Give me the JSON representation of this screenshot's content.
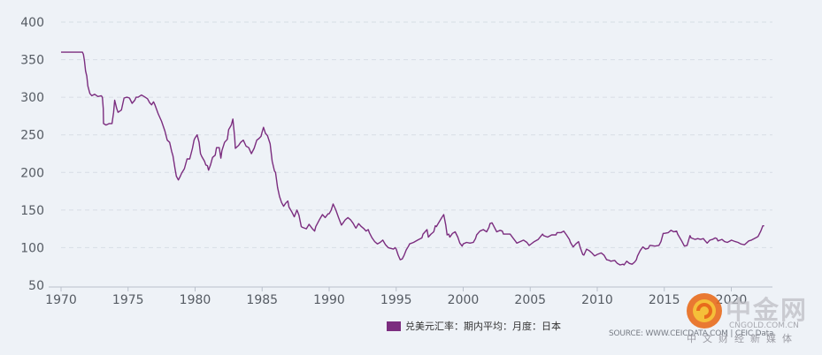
{
  "chart_data": {
    "type": "line",
    "x_range": [
      1970,
      2022.5
    ],
    "ylim": [
      50,
      400
    ],
    "yticks": [
      50,
      100,
      150,
      200,
      250,
      300,
      350,
      400
    ],
    "xticks": [
      1970,
      1975,
      1980,
      1985,
      1990,
      1995,
      2000,
      2005,
      2010,
      2015,
      2020
    ],
    "grid": "horizontal-dashed",
    "legend_position": "bottom-center",
    "series": [
      {
        "name": "兑美元汇率：期内平均：月度：日本",
        "color": "#7b2d7f",
        "points": [
          [
            1970.0,
            360
          ],
          [
            1971.6,
            360
          ],
          [
            1971.67,
            357
          ],
          [
            1971.75,
            348
          ],
          [
            1971.83,
            335
          ],
          [
            1971.92,
            328
          ],
          [
            1972.0,
            315
          ],
          [
            1972.15,
            305
          ],
          [
            1972.3,
            302
          ],
          [
            1972.5,
            304
          ],
          [
            1972.75,
            301
          ],
          [
            1973.0,
            302
          ],
          [
            1973.08,
            300
          ],
          [
            1973.15,
            285
          ],
          [
            1973.17,
            265
          ],
          [
            1973.35,
            263
          ],
          [
            1973.6,
            265
          ],
          [
            1973.8,
            265
          ],
          [
            1973.92,
            280
          ],
          [
            1974.0,
            296
          ],
          [
            1974.15,
            285
          ],
          [
            1974.25,
            280
          ],
          [
            1974.5,
            283
          ],
          [
            1974.7,
            299
          ],
          [
            1974.92,
            300
          ],
          [
            1975.1,
            299
          ],
          [
            1975.3,
            292
          ],
          [
            1975.5,
            296
          ],
          [
            1975.6,
            300
          ],
          [
            1975.75,
            300
          ],
          [
            1976.0,
            303
          ],
          [
            1976.2,
            301
          ],
          [
            1976.45,
            298
          ],
          [
            1976.6,
            293
          ],
          [
            1976.75,
            290
          ],
          [
            1976.9,
            294
          ],
          [
            1977.0,
            290
          ],
          [
            1977.25,
            278
          ],
          [
            1977.5,
            268
          ],
          [
            1977.75,
            255
          ],
          [
            1977.92,
            243
          ],
          [
            1978.1,
            240
          ],
          [
            1978.25,
            228
          ],
          [
            1978.35,
            222
          ],
          [
            1978.5,
            205
          ],
          [
            1978.6,
            195
          ],
          [
            1978.75,
            190
          ],
          [
            1978.9,
            195
          ],
          [
            1979.0,
            199
          ],
          [
            1979.2,
            205
          ],
          [
            1979.4,
            218
          ],
          [
            1979.6,
            218
          ],
          [
            1979.8,
            232
          ],
          [
            1979.92,
            243
          ],
          [
            1980.0,
            246
          ],
          [
            1980.15,
            250
          ],
          [
            1980.3,
            240
          ],
          [
            1980.4,
            225
          ],
          [
            1980.5,
            221
          ],
          [
            1980.7,
            215
          ],
          [
            1980.8,
            210
          ],
          [
            1980.92,
            209
          ],
          [
            1981.0,
            203
          ],
          [
            1981.15,
            210
          ],
          [
            1981.3,
            220
          ],
          [
            1981.5,
            223
          ],
          [
            1981.6,
            233
          ],
          [
            1981.8,
            233
          ],
          [
            1981.92,
            219
          ],
          [
            1982.0,
            229
          ],
          [
            1982.2,
            240
          ],
          [
            1982.4,
            244
          ],
          [
            1982.5,
            257
          ],
          [
            1982.7,
            263
          ],
          [
            1982.82,
            271
          ],
          [
            1982.95,
            247
          ],
          [
            1983.0,
            232
          ],
          [
            1983.25,
            236
          ],
          [
            1983.4,
            240
          ],
          [
            1983.6,
            243
          ],
          [
            1983.8,
            235
          ],
          [
            1984.0,
            233
          ],
          [
            1984.2,
            225
          ],
          [
            1984.4,
            232
          ],
          [
            1984.6,
            243
          ],
          [
            1984.75,
            245
          ],
          [
            1984.92,
            248
          ],
          [
            1985.0,
            254
          ],
          [
            1985.1,
            260
          ],
          [
            1985.25,
            252
          ],
          [
            1985.4,
            249
          ],
          [
            1985.6,
            238
          ],
          [
            1985.75,
            215
          ],
          [
            1985.92,
            202
          ],
          [
            1986.0,
            200
          ],
          [
            1986.15,
            180
          ],
          [
            1986.3,
            168
          ],
          [
            1986.45,
            160
          ],
          [
            1986.6,
            155
          ],
          [
            1986.75,
            159
          ],
          [
            1986.92,
            162
          ],
          [
            1987.0,
            154
          ],
          [
            1987.2,
            148
          ],
          [
            1987.4,
            141
          ],
          [
            1987.6,
            150
          ],
          [
            1987.75,
            143
          ],
          [
            1987.92,
            128
          ],
          [
            1988.0,
            127
          ],
          [
            1988.3,
            125
          ],
          [
            1988.5,
            131
          ],
          [
            1988.75,
            125
          ],
          [
            1988.92,
            122
          ],
          [
            1989.0,
            128
          ],
          [
            1989.3,
            138
          ],
          [
            1989.5,
            144
          ],
          [
            1989.7,
            140
          ],
          [
            1989.92,
            145
          ],
          [
            1990.0,
            145
          ],
          [
            1990.15,
            150
          ],
          [
            1990.3,
            158
          ],
          [
            1990.5,
            150
          ],
          [
            1990.7,
            140
          ],
          [
            1990.92,
            130
          ],
          [
            1991.0,
            132
          ],
          [
            1991.2,
            137
          ],
          [
            1991.4,
            140
          ],
          [
            1991.6,
            137
          ],
          [
            1991.8,
            132
          ],
          [
            1991.92,
            128
          ],
          [
            1992.0,
            126
          ],
          [
            1992.2,
            132
          ],
          [
            1992.4,
            128
          ],
          [
            1992.6,
            125
          ],
          [
            1992.75,
            122
          ],
          [
            1992.92,
            124
          ],
          [
            1993.0,
            120
          ],
          [
            1993.2,
            113
          ],
          [
            1993.4,
            108
          ],
          [
            1993.6,
            105
          ],
          [
            1993.8,
            107
          ],
          [
            1994.0,
            110
          ],
          [
            1994.2,
            104
          ],
          [
            1994.4,
            100
          ],
          [
            1994.6,
            99
          ],
          [
            1994.8,
            98
          ],
          [
            1994.92,
            100
          ],
          [
            1995.0,
            98
          ],
          [
            1995.15,
            90
          ],
          [
            1995.3,
            84
          ],
          [
            1995.45,
            85
          ],
          [
            1995.6,
            90
          ],
          [
            1995.75,
            97
          ],
          [
            1995.92,
            102
          ],
          [
            1996.0,
            105
          ],
          [
            1996.3,
            107
          ],
          [
            1996.6,
            110
          ],
          [
            1996.92,
            113
          ],
          [
            1997.0,
            118
          ],
          [
            1997.3,
            124
          ],
          [
            1997.4,
            114
          ],
          [
            1997.6,
            118
          ],
          [
            1997.8,
            121
          ],
          [
            1997.92,
            129
          ],
          [
            1998.0,
            128
          ],
          [
            1998.2,
            134
          ],
          [
            1998.4,
            140
          ],
          [
            1998.55,
            144
          ],
          [
            1998.7,
            130
          ],
          [
            1998.8,
            117
          ],
          [
            1998.92,
            118
          ],
          [
            1999.0,
            114
          ],
          [
            1999.2,
            119
          ],
          [
            1999.4,
            121
          ],
          [
            1999.6,
            114
          ],
          [
            1999.75,
            106
          ],
          [
            1999.92,
            102
          ],
          [
            2000.0,
            105
          ],
          [
            2000.25,
            107
          ],
          [
            2000.5,
            106
          ],
          [
            2000.75,
            107
          ],
          [
            2000.92,
            112
          ],
          [
            2001.0,
            117
          ],
          [
            2001.25,
            122
          ],
          [
            2001.5,
            124
          ],
          [
            2001.75,
            121
          ],
          [
            2001.92,
            127
          ],
          [
            2002.0,
            132
          ],
          [
            2002.15,
            133
          ],
          [
            2002.3,
            128
          ],
          [
            2002.5,
            121
          ],
          [
            2002.75,
            123
          ],
          [
            2002.92,
            122
          ],
          [
            2003.0,
            118
          ],
          [
            2003.3,
            118
          ],
          [
            2003.5,
            118
          ],
          [
            2003.75,
            112
          ],
          [
            2003.92,
            108
          ],
          [
            2004.0,
            106
          ],
          [
            2004.25,
            108
          ],
          [
            2004.5,
            110
          ],
          [
            2004.75,
            107
          ],
          [
            2004.92,
            103
          ],
          [
            2005.0,
            104
          ],
          [
            2005.3,
            108
          ],
          [
            2005.6,
            111
          ],
          [
            2005.92,
            118
          ],
          [
            2006.0,
            116
          ],
          [
            2006.3,
            114
          ],
          [
            2006.6,
            117
          ],
          [
            2006.92,
            117
          ],
          [
            2007.0,
            120
          ],
          [
            2007.3,
            120
          ],
          [
            2007.5,
            122
          ],
          [
            2007.7,
            117
          ],
          [
            2007.92,
            111
          ],
          [
            2008.0,
            107
          ],
          [
            2008.2,
            101
          ],
          [
            2008.4,
            105
          ],
          [
            2008.6,
            108
          ],
          [
            2008.75,
            99
          ],
          [
            2008.92,
            91
          ],
          [
            2009.0,
            90
          ],
          [
            2009.2,
            98
          ],
          [
            2009.4,
            96
          ],
          [
            2009.6,
            93
          ],
          [
            2009.8,
            89
          ],
          [
            2009.92,
            90
          ],
          [
            2010.0,
            91
          ],
          [
            2010.3,
            93
          ],
          [
            2010.5,
            90
          ],
          [
            2010.7,
            84
          ],
          [
            2010.92,
            83
          ],
          [
            2011.0,
            82
          ],
          [
            2011.3,
            83
          ],
          [
            2011.5,
            79
          ],
          [
            2011.7,
            77
          ],
          [
            2011.92,
            78
          ],
          [
            2012.0,
            77
          ],
          [
            2012.2,
            82
          ],
          [
            2012.4,
            79
          ],
          [
            2012.6,
            78
          ],
          [
            2012.8,
            81
          ],
          [
            2012.92,
            84
          ],
          [
            2013.0,
            89
          ],
          [
            2013.2,
            96
          ],
          [
            2013.4,
            101
          ],
          [
            2013.6,
            98
          ],
          [
            2013.8,
            99
          ],
          [
            2013.92,
            103
          ],
          [
            2014.0,
            103
          ],
          [
            2014.3,
            102
          ],
          [
            2014.6,
            103
          ],
          [
            2014.75,
            108
          ],
          [
            2014.92,
            119
          ],
          [
            2015.0,
            119
          ],
          [
            2015.3,
            120
          ],
          [
            2015.5,
            123
          ],
          [
            2015.7,
            121
          ],
          [
            2015.92,
            122
          ],
          [
            2016.0,
            118
          ],
          [
            2016.3,
            109
          ],
          [
            2016.5,
            102
          ],
          [
            2016.7,
            103
          ],
          [
            2016.92,
            116
          ],
          [
            2017.0,
            113
          ],
          [
            2017.3,
            111
          ],
          [
            2017.5,
            112
          ],
          [
            2017.7,
            111
          ],
          [
            2017.92,
            112
          ],
          [
            2018.0,
            110
          ],
          [
            2018.2,
            106
          ],
          [
            2018.4,
            110
          ],
          [
            2018.6,
            111
          ],
          [
            2018.8,
            113
          ],
          [
            2018.92,
            112
          ],
          [
            2019.0,
            109
          ],
          [
            2019.3,
            111
          ],
          [
            2019.5,
            108
          ],
          [
            2019.7,
            107
          ],
          [
            2019.92,
            109
          ],
          [
            2020.0,
            110
          ],
          [
            2020.3,
            108
          ],
          [
            2020.5,
            107
          ],
          [
            2020.7,
            105
          ],
          [
            2020.92,
            104
          ],
          [
            2021.0,
            104
          ],
          [
            2021.3,
            109
          ],
          [
            2021.5,
            110
          ],
          [
            2021.7,
            112
          ],
          [
            2021.92,
            114
          ],
          [
            2022.0,
            115
          ],
          [
            2022.2,
            122
          ],
          [
            2022.35,
            129
          ],
          [
            2022.45,
            129
          ]
        ]
      }
    ]
  },
  "legend": {
    "label": "兑美元汇率：期内平均：月度：日本",
    "color": "#7b2d7f"
  },
  "source": "SOURCE: WWW.CEICDATA.COM | CEIC Data",
  "watermark": {
    "name": "中金网",
    "url": "CNGOLD.COM.CN",
    "tagline": "中文财经新媒体"
  }
}
